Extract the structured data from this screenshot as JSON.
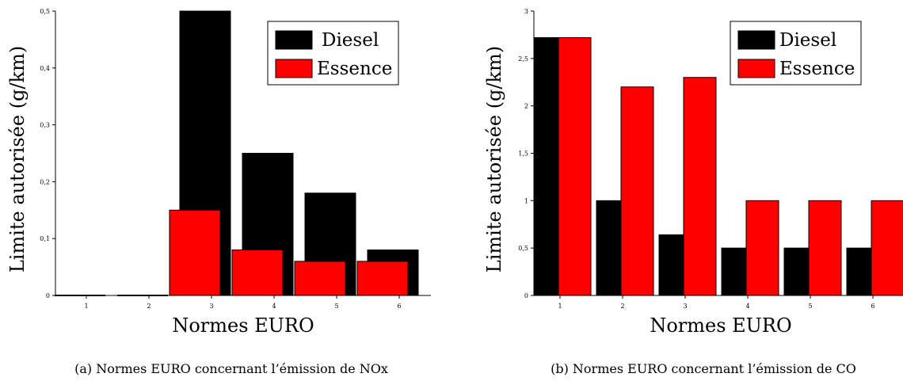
{
  "chart_data": [
    {
      "type": "bar",
      "caption": "(a) Normes EURO concernant l’émission de NOx",
      "xlabel": "Normes EURO",
      "ylabel": "Limite autorisée (g/km)",
      "categories": [
        "1",
        "2",
        "3",
        "4",
        "5",
        "6"
      ],
      "ylim": [
        0,
        0.5
      ],
      "yticks": [
        0,
        0.1,
        0.2,
        0.3,
        0.4,
        0.5
      ],
      "ytick_labels": [
        "0",
        "0,1",
        "0,2",
        "0,3",
        "0,4",
        "0,5"
      ],
      "legend_position": "top-right",
      "grid": false,
      "series": [
        {
          "name": "Diesel",
          "color": "#000000",
          "values": [
            0,
            0,
            0.5,
            0.25,
            0.18,
            0.08
          ]
        },
        {
          "name": "Essence",
          "color": "#ff0000",
          "values": [
            0,
            0,
            0.15,
            0.08,
            0.06,
            0.06
          ]
        }
      ]
    },
    {
      "type": "bar",
      "caption": "(b) Normes EURO concernant l’émission de CO",
      "xlabel": "Normes EURO",
      "ylabel": "Limite autorisée (g/km)",
      "categories": [
        "1",
        "2",
        "3",
        "4",
        "5",
        "6"
      ],
      "ylim": [
        0,
        3
      ],
      "yticks": [
        0,
        0.5,
        1,
        1.5,
        2,
        2.5,
        3
      ],
      "ytick_labels": [
        "0",
        "0,5",
        "1",
        "1,5",
        "2",
        "2,5",
        "3"
      ],
      "legend_position": "top-right",
      "grid": false,
      "series": [
        {
          "name": "Diesel",
          "color": "#000000",
          "values": [
            2.72,
            1.0,
            0.64,
            0.5,
            0.5,
            0.5
          ]
        },
        {
          "name": "Essence",
          "color": "#ff0000",
          "values": [
            2.72,
            2.2,
            2.3,
            1.0,
            1.0,
            1.0
          ]
        }
      ]
    }
  ]
}
